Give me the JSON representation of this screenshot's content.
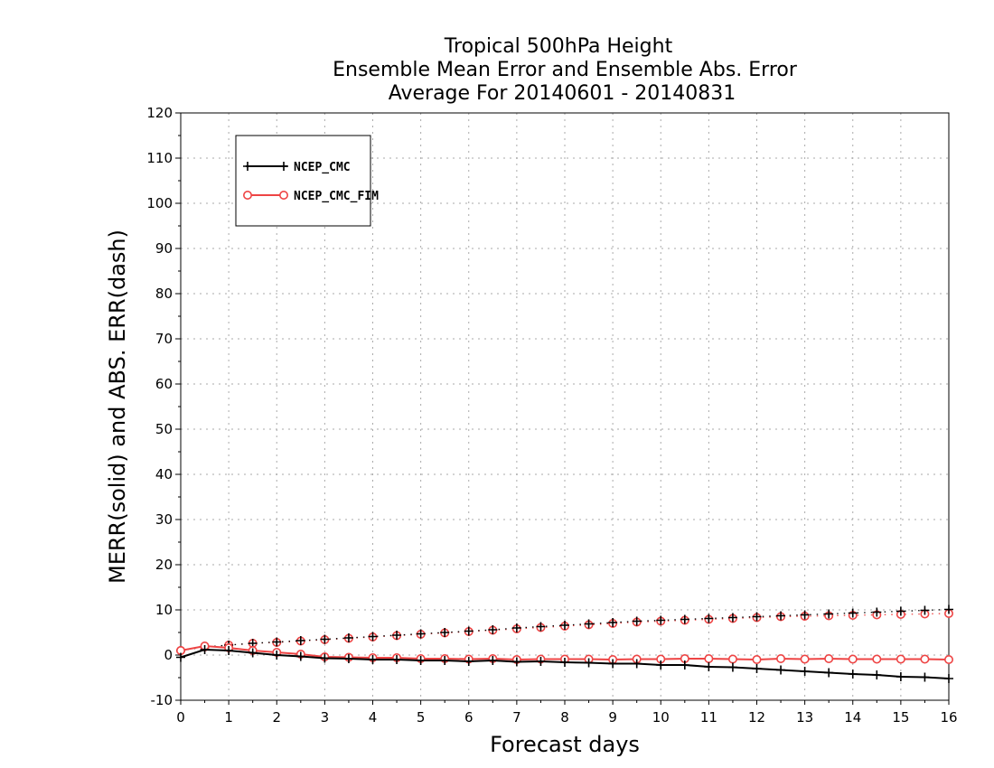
{
  "chart_data": {
    "type": "line",
    "title_lines": [
      "Tropical 500hPa Height",
      "Ensemble Mean Error and Ensemble Abs. Error",
      "Average For 20140601 - 20140831"
    ],
    "xlabel": "Forecast days",
    "ylabel": "MERR(solid) and ABS. ERR(dash)",
    "xlim": [
      0,
      16
    ],
    "ylim": [
      -10,
      120
    ],
    "x_ticks": [
      "0",
      "1",
      "2",
      "3",
      "4",
      "5",
      "6",
      "7",
      "8",
      "9",
      "10",
      "11",
      "12",
      "13",
      "14",
      "15",
      "16"
    ],
    "y_ticks": [
      "-10",
      "0",
      "10",
      "20",
      "30",
      "40",
      "50",
      "60",
      "70",
      "80",
      "90",
      "100",
      "110",
      "120"
    ],
    "grid": true,
    "legend_position": "top-left",
    "x": [
      0,
      0.5,
      1,
      1.5,
      2,
      2.5,
      3,
      3.5,
      4,
      4.5,
      5,
      5.5,
      6,
      6.5,
      7,
      7.5,
      8,
      8.5,
      9,
      9.5,
      10,
      10.5,
      11,
      11.5,
      12,
      12.5,
      13,
      13.5,
      14,
      14.5,
      15,
      15.5,
      16
    ],
    "series": [
      {
        "name": "NCEP_CMC",
        "color": "#000000",
        "marker": "plus",
        "merr": [
          -0.5,
          1.2,
          1.0,
          0.5,
          0.0,
          -0.3,
          -0.7,
          -0.8,
          -1.0,
          -1.0,
          -1.2,
          -1.2,
          -1.4,
          -1.2,
          -1.5,
          -1.4,
          -1.6,
          -1.7,
          -1.9,
          -1.9,
          -2.2,
          -2.2,
          -2.6,
          -2.7,
          -3.0,
          -3.3,
          -3.6,
          -3.9,
          -4.2,
          -4.4,
          -4.8,
          -4.9,
          -5.2
        ],
        "abs_err": [
          1.0,
          1.8,
          2.2,
          2.6,
          2.9,
          3.2,
          3.5,
          3.8,
          4.1,
          4.4,
          4.7,
          5.0,
          5.3,
          5.6,
          6.0,
          6.3,
          6.6,
          6.9,
          7.2,
          7.5,
          7.7,
          7.9,
          8.1,
          8.3,
          8.5,
          8.7,
          8.9,
          9.1,
          9.3,
          9.5,
          9.7,
          9.9,
          10.1
        ]
      },
      {
        "name": "NCEP_CMC_FIM",
        "color": "#ee4444",
        "marker": "circle",
        "merr": [
          1.0,
          2.0,
          1.6,
          1.0,
          0.6,
          0.2,
          -0.4,
          -0.5,
          -0.6,
          -0.6,
          -0.8,
          -0.8,
          -0.9,
          -0.8,
          -1.0,
          -0.9,
          -0.9,
          -0.9,
          -1.0,
          -0.9,
          -0.9,
          -0.8,
          -0.8,
          -0.9,
          -1.0,
          -0.8,
          -0.9,
          -0.8,
          -0.9,
          -0.9,
          -0.9,
          -0.9,
          -1.0
        ],
        "abs_err": [
          1.0,
          1.8,
          2.2,
          2.6,
          2.8,
          3.1,
          3.4,
          3.7,
          4.0,
          4.3,
          4.6,
          4.9,
          5.2,
          5.5,
          5.8,
          6.1,
          6.4,
          6.7,
          7.0,
          7.3,
          7.5,
          7.7,
          7.9,
          8.1,
          8.3,
          8.5,
          8.6,
          8.7,
          8.8,
          8.9,
          9.0,
          9.1,
          9.2
        ]
      }
    ]
  }
}
